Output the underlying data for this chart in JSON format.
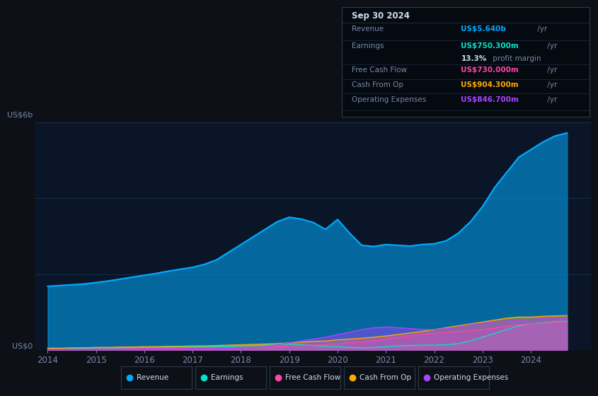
{
  "bg_color": "#0d1117",
  "plot_bg_color": "#0a1628",
  "title_box": {
    "date": "Sep 30 2024",
    "revenue_label": "Revenue",
    "revenue_value": "US$5.640b /yr",
    "revenue_color": "#00aaff",
    "earnings_label": "Earnings",
    "earnings_value": "US$750.300m /yr",
    "earnings_color": "#00e5cc",
    "margin_text": "13.3% profit margin",
    "fcf_label": "Free Cash Flow",
    "fcf_value": "US$730.000m /yr",
    "fcf_color": "#ff44aa",
    "cashop_label": "Cash From Op",
    "cashop_value": "US$904.300m /yr",
    "cashop_color": "#ffaa00",
    "opex_label": "Operating Expenses",
    "opex_value": "US$846.700m /yr",
    "opex_color": "#aa44ff"
  },
  "ylabel_top": "US$6b",
  "ylabel_bottom": "US$0",
  "years": [
    2014.0,
    2014.25,
    2014.5,
    2014.75,
    2015.0,
    2015.25,
    2015.5,
    2015.75,
    2016.0,
    2016.25,
    2016.5,
    2016.75,
    2017.0,
    2017.25,
    2017.5,
    2017.75,
    2018.0,
    2018.25,
    2018.5,
    2018.75,
    2019.0,
    2019.25,
    2019.5,
    2019.75,
    2020.0,
    2020.25,
    2020.5,
    2020.75,
    2021.0,
    2021.25,
    2021.5,
    2021.75,
    2022.0,
    2022.25,
    2022.5,
    2022.75,
    2023.0,
    2023.25,
    2023.5,
    2023.75,
    2024.0,
    2024.25,
    2024.5,
    2024.75
  ],
  "revenue": [
    1.68,
    1.7,
    1.72,
    1.74,
    1.78,
    1.82,
    1.87,
    1.92,
    1.97,
    2.02,
    2.08,
    2.13,
    2.18,
    2.26,
    2.38,
    2.58,
    2.78,
    2.98,
    3.18,
    3.38,
    3.5,
    3.45,
    3.36,
    3.18,
    3.44,
    3.08,
    2.76,
    2.73,
    2.78,
    2.76,
    2.74,
    2.78,
    2.8,
    2.88,
    3.08,
    3.38,
    3.78,
    4.28,
    4.68,
    5.08,
    5.28,
    5.48,
    5.64,
    5.72
  ],
  "earnings": [
    0.04,
    0.04,
    0.05,
    0.05,
    0.06,
    0.06,
    0.06,
    0.07,
    0.07,
    0.08,
    0.08,
    0.09,
    0.09,
    0.09,
    0.1,
    0.1,
    0.11,
    0.12,
    0.13,
    0.14,
    0.16,
    0.14,
    0.12,
    0.1,
    0.09,
    0.07,
    0.06,
    0.07,
    0.09,
    0.11,
    0.12,
    0.13,
    0.13,
    0.14,
    0.17,
    0.24,
    0.34,
    0.44,
    0.54,
    0.64,
    0.69,
    0.72,
    0.75,
    0.76
  ],
  "free_cash_flow": [
    0.02,
    0.02,
    0.02,
    0.02,
    0.03,
    0.03,
    0.03,
    0.04,
    0.04,
    0.04,
    0.05,
    0.05,
    0.05,
    0.05,
    0.06,
    0.06,
    0.07,
    0.07,
    0.08,
    0.09,
    0.11,
    0.12,
    0.13,
    0.14,
    0.17,
    0.19,
    0.21,
    0.24,
    0.28,
    0.33,
    0.37,
    0.41,
    0.44,
    0.47,
    0.49,
    0.51,
    0.54,
    0.58,
    0.63,
    0.67,
    0.69,
    0.71,
    0.73,
    0.74
  ],
  "cash_from_op": [
    0.05,
    0.05,
    0.06,
    0.06,
    0.07,
    0.07,
    0.08,
    0.08,
    0.09,
    0.09,
    0.1,
    0.1,
    0.11,
    0.11,
    0.12,
    0.13,
    0.14,
    0.15,
    0.16,
    0.17,
    0.19,
    0.21,
    0.23,
    0.24,
    0.27,
    0.29,
    0.31,
    0.34,
    0.37,
    0.41,
    0.45,
    0.49,
    0.54,
    0.59,
    0.64,
    0.69,
    0.74,
    0.79,
    0.84,
    0.87,
    0.87,
    0.89,
    0.9,
    0.91
  ],
  "operating_expenses": [
    0.01,
    0.01,
    0.02,
    0.02,
    0.02,
    0.02,
    0.02,
    0.02,
    0.03,
    0.03,
    0.03,
    0.03,
    0.04,
    0.04,
    0.04,
    0.05,
    0.06,
    0.07,
    0.09,
    0.14,
    0.19,
    0.24,
    0.29,
    0.34,
    0.41,
    0.47,
    0.54,
    0.59,
    0.61,
    0.59,
    0.57,
    0.54,
    0.54,
    0.57,
    0.61,
    0.67,
    0.71,
    0.75,
    0.77,
    0.79,
    0.81,
    0.83,
    0.85,
    0.86
  ],
  "colors": {
    "revenue": "#00aaff",
    "earnings": "#00e5cc",
    "free_cash_flow": "#ff44aa",
    "cash_from_op": "#ffaa00",
    "operating_expenses": "#aa44ff",
    "grid": "#1a3050",
    "text": "#7788aa",
    "axis_label": "#6688aa"
  },
  "xlim": [
    2013.75,
    2025.25
  ],
  "ylim": [
    0,
    6.0
  ],
  "xticks": [
    2014,
    2015,
    2016,
    2017,
    2018,
    2019,
    2020,
    2021,
    2022,
    2023,
    2024
  ],
  "legend_items": [
    "Revenue",
    "Earnings",
    "Free Cash Flow",
    "Cash From Op",
    "Operating Expenses"
  ],
  "legend_colors": [
    "#00aaff",
    "#00e5cc",
    "#ff44aa",
    "#ffaa00",
    "#aa44ff"
  ]
}
